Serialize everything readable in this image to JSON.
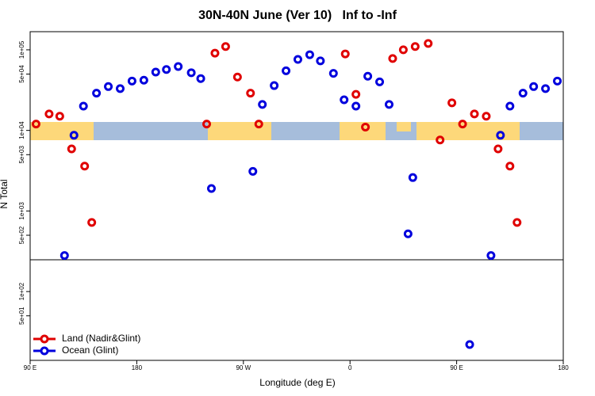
{
  "chart_data": {
    "type": "scatter",
    "title": "30N-40N June (Ver 10)   Inf to -Inf",
    "x_label": "Longitude (deg E)",
    "y_label": "N Total",
    "log_y": true,
    "legend": "bottom-left",
    "xlim": [
      90,
      540
    ],
    "xticks": [
      {
        "value": 90,
        "label": "90 E"
      },
      180,
      {
        "value": 270,
        "label": "90 W"
      },
      {
        "value": 360,
        "label": "0"
      },
      {
        "value": 450,
        "label": "90 E"
      },
      {
        "value": 540,
        "label": "180"
      }
    ],
    "ylim": [
      14,
      168000
    ],
    "yticks": [
      {
        "value": 100000,
        "label": "1e+05"
      },
      {
        "value": 50000,
        "label": "5e+04"
      },
      {
        "value": 10000,
        "label": "1e+04"
      },
      {
        "value": 5000,
        "label": "5e+03"
      },
      {
        "value": 1000,
        "label": "1e+03"
      },
      {
        "value": 500,
        "label": "5e+02"
      },
      {
        "value": 100,
        "label": "1e+02"
      },
      {
        "value": 50,
        "label": "5e+01"
      }
    ],
    "series": [
      {
        "name": "Land (Nadir&Glint)",
        "color": "#e00000",
        "x": [
          95,
          106,
          115,
          125,
          136,
          142,
          239,
          246,
          255,
          265,
          276,
          283,
          356,
          365,
          373,
          396,
          405,
          415,
          426,
          436,
          446,
          455,
          465,
          475,
          485,
          495,
          501
        ],
        "values": [
          12000,
          16000,
          15000,
          5900,
          3600,
          720,
          12000,
          91000,
          110000,
          46000,
          29000,
          12000,
          89000,
          28000,
          11000,
          78000,
          100000,
          110000,
          120000,
          7600,
          22000,
          12000,
          16000,
          15000,
          5900,
          3600,
          720
        ]
      },
      {
        "name": "Ocean (Glint)",
        "color": "#0000dd",
        "x": [
          119,
          127,
          135,
          146,
          156,
          166,
          176,
          186,
          196,
          205,
          215,
          226,
          234,
          243,
          278,
          286,
          296,
          306,
          316,
          326,
          335,
          346,
          355,
          365,
          375,
          385,
          393,
          409,
          413,
          461,
          479,
          487,
          495,
          506,
          515,
          525,
          535
        ],
        "values": [
          280,
          8700,
          20000,
          29000,
          35000,
          33000,
          41000,
          42000,
          53000,
          57000,
          62000,
          52000,
          44000,
          1900,
          3100,
          21000,
          36000,
          55000,
          76000,
          87000,
          73000,
          51000,
          24000,
          20000,
          47000,
          40000,
          21000,
          520,
          2600,
          22,
          280,
          8700,
          20000,
          29000,
          35000,
          33000,
          41000
        ]
      }
    ]
  }
}
